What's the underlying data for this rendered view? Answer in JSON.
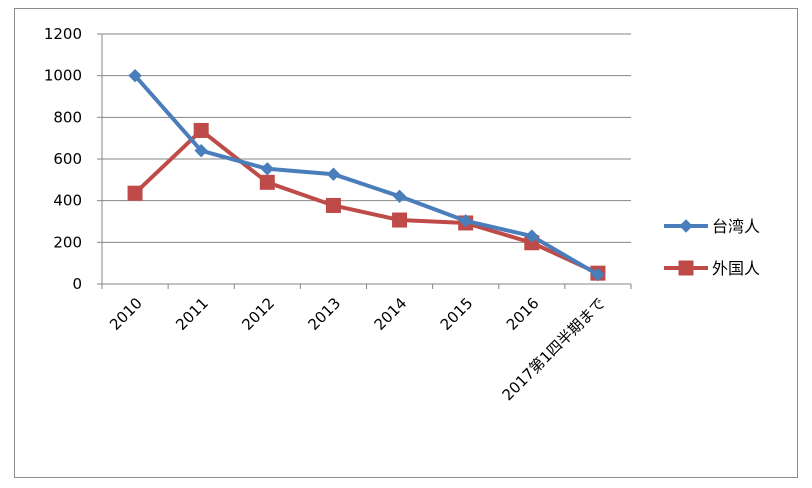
{
  "chart_data": {
    "type": "line",
    "title": "",
    "xlabel": "",
    "ylabel": "",
    "categories": [
      "2010",
      "2011",
      "2012",
      "2013",
      "2014",
      "2015",
      "2016",
      "2017第1四半期まで"
    ],
    "ylim": [
      0,
      1200
    ],
    "yticks": [
      0,
      200,
      400,
      600,
      800,
      1000,
      1200
    ],
    "grid": "horizontal",
    "legend_position": "right",
    "series": [
      {
        "name": "台湾人",
        "color": "#4a7ebb",
        "marker": "diamond",
        "values": [
          1000,
          640,
          553,
          527,
          421,
          303,
          230,
          45
        ]
      },
      {
        "name": "外国人",
        "color": "#be4b48",
        "marker": "square",
        "values": [
          436,
          737,
          488,
          377,
          307,
          293,
          198,
          52
        ]
      }
    ]
  }
}
